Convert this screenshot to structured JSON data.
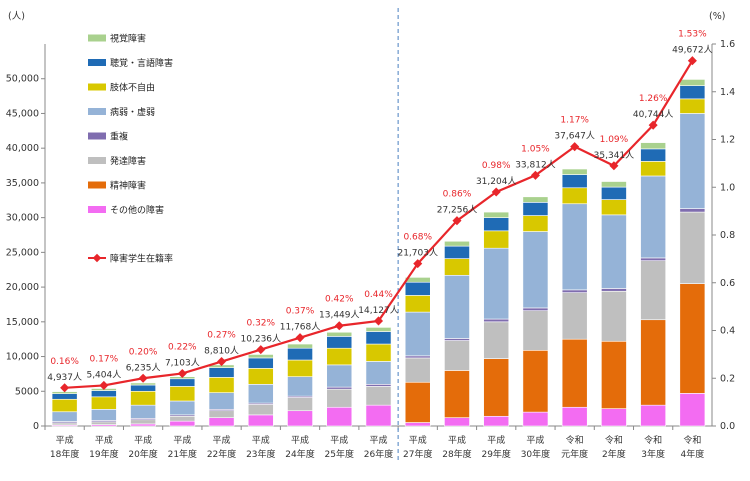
{
  "chart_data": {
    "type": "bar",
    "stacked": true,
    "left_unit_label": "(人)",
    "right_unit_label": "(%)",
    "ylim": [
      0,
      55000
    ],
    "y_ticks": [
      "0",
      "5000",
      "10,000",
      "15,000",
      "20,000",
      "25,000",
      "30,000",
      "35,000",
      "40,000",
      "45,000",
      "50,000"
    ],
    "y2lim": [
      0,
      1.6
    ],
    "y2_ticks": [
      "0.0",
      "0.2",
      "0.4",
      "0.6",
      "0.8",
      "1.0",
      "1.2",
      "1.4",
      "1.6"
    ],
    "grid": false,
    "legend_position": "top-left",
    "categories": [
      [
        "平成",
        "18年度"
      ],
      [
        "平成",
        "19年度"
      ],
      [
        "平成",
        "20年度"
      ],
      [
        "平成",
        "21年度"
      ],
      [
        "平成",
        "22年度"
      ],
      [
        "平成",
        "23年度"
      ],
      [
        "平成",
        "24年度"
      ],
      [
        "平成",
        "25年度"
      ],
      [
        "平成",
        "26年度"
      ],
      [
        "平成",
        "27年度"
      ],
      [
        "平成",
        "28年度"
      ],
      [
        "平成",
        "29年度"
      ],
      [
        "平成",
        "30年度"
      ],
      [
        "令和",
        "元年度"
      ],
      [
        "令和",
        "2年度"
      ],
      [
        "令和",
        "3年度"
      ],
      [
        "令和",
        "4年度"
      ]
    ],
    "series": [
      {
        "name": "その他の障害",
        "color": "#f36cf2",
        "values": [
          150,
          200,
          300,
          700,
          1200,
          1600,
          2200,
          2700,
          3000,
          500,
          1200,
          1400,
          2000,
          2700,
          2500,
          3000,
          4700
        ]
      },
      {
        "name": "精神障害",
        "color": "#e46c0a",
        "values": [
          0,
          0,
          0,
          0,
          0,
          0,
          0,
          0,
          0,
          5800,
          6800,
          8300,
          8900,
          9800,
          9700,
          12300,
          15800
        ]
      },
      {
        "name": "発達障害",
        "color": "#bfbfbf",
        "values": [
          300,
          400,
          600,
          700,
          1000,
          1500,
          1900,
          2600,
          2700,
          3500,
          4300,
          5300,
          5700,
          6700,
          7200,
          8500,
          10300
        ]
      },
      {
        "name": "重複",
        "color": "#7f6daf",
        "values": [
          200,
          200,
          200,
          200,
          200,
          200,
          200,
          300,
          300,
          300,
          300,
          400,
          400,
          400,
          400,
          400,
          500
        ]
      },
      {
        "name": "病弱・虚弱",
        "color": "#95b3d7",
        "values": [
          1400,
          1600,
          1900,
          2000,
          2400,
          2700,
          2800,
          3200,
          3300,
          6300,
          9100,
          10200,
          11000,
          12400,
          10600,
          11800,
          13700
        ]
      },
      {
        "name": "肢体不自由",
        "color": "#d8c800",
        "values": [
          1800,
          1800,
          2000,
          2100,
          2200,
          2300,
          2400,
          2400,
          2500,
          2400,
          2400,
          2500,
          2300,
          2300,
          2200,
          2100,
          2100
        ]
      },
      {
        "name": "聴覚・言語障害",
        "color": "#1f6bb5",
        "values": [
          800,
          900,
          900,
          1100,
          1400,
          1500,
          1700,
          1700,
          1800,
          1900,
          1800,
          1900,
          1900,
          1900,
          1800,
          1800,
          1900
        ]
      },
      {
        "name": "視覚障害",
        "color": "#a9d18e",
        "values": [
          300,
          300,
          300,
          300,
          400,
          500,
          600,
          600,
          600,
          700,
          700,
          800,
          800,
          800,
          800,
          900,
          900
        ]
      }
    ],
    "totals": [
      "4,937人",
      "5,404人",
      "6,235人",
      "7,103人",
      "8,810人",
      "10,236人",
      "11,768人",
      "13,449人",
      "14,127人",
      "21,703人",
      "27,256人",
      "31,204人",
      "33,812人",
      "37,647人",
      "35,341人",
      "40,744人",
      "49,672人"
    ],
    "rate_series": {
      "name": "障害学生在籍率",
      "color": "#e8262b",
      "values": [
        0.16,
        0.17,
        0.2,
        0.22,
        0.27,
        0.32,
        0.37,
        0.42,
        0.44,
        0.68,
        0.86,
        0.98,
        1.05,
        1.17,
        1.09,
        1.26,
        1.53
      ],
      "labels": [
        "0.16%",
        "0.17%",
        "0.20%",
        "0.22%",
        "0.27%",
        "0.32%",
        "0.37%",
        "0.42%",
        "0.44%",
        "0.68%",
        "0.86%",
        "0.98%",
        "1.05%",
        "1.17%",
        "1.09%",
        "1.26%",
        "1.53%"
      ]
    },
    "legend_order": [
      "視覚障害",
      "聴覚・言語障害",
      "肢体不自由",
      "病弱・虚弱",
      "重複",
      "発達障害",
      "精神障害",
      "その他の障害",
      "障害学生在籍率"
    ],
    "divider_after_index": 8
  }
}
